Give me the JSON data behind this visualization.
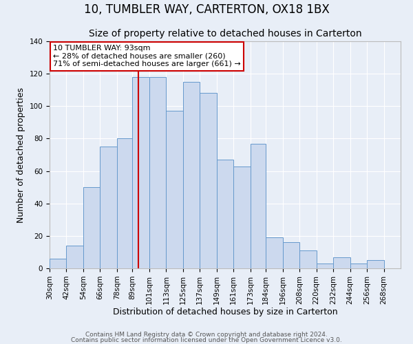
{
  "title": "10, TUMBLER WAY, CARTERTON, OX18 1BX",
  "subtitle": "Size of property relative to detached houses in Carterton",
  "xlabel": "Distribution of detached houses by size in Carterton",
  "ylabel": "Number of detached properties",
  "bar_left_edges": [
    30,
    42,
    54,
    66,
    78,
    89,
    101,
    113,
    125,
    137,
    149,
    161,
    173,
    184,
    196,
    208,
    220,
    232,
    244,
    256
  ],
  "bar_widths": [
    12,
    12,
    12,
    12,
    11,
    12,
    12,
    12,
    12,
    12,
    12,
    12,
    11,
    12,
    12,
    12,
    12,
    12,
    12,
    12
  ],
  "bar_heights": [
    6,
    14,
    50,
    75,
    80,
    118,
    118,
    97,
    115,
    108,
    67,
    63,
    77,
    19,
    16,
    11,
    3,
    7,
    3,
    5
  ],
  "bar_facecolor": "#ccd9ee",
  "bar_edgecolor": "#6699cc",
  "vline_x": 93,
  "vline_color": "#cc0000",
  "ylim": [
    0,
    140
  ],
  "yticks": [
    0,
    20,
    40,
    60,
    80,
    100,
    120,
    140
  ],
  "xtick_labels": [
    "30sqm",
    "42sqm",
    "54sqm",
    "66sqm",
    "78sqm",
    "89sqm",
    "101sqm",
    "113sqm",
    "125sqm",
    "137sqm",
    "149sqm",
    "161sqm",
    "173sqm",
    "184sqm",
    "196sqm",
    "208sqm",
    "220sqm",
    "232sqm",
    "244sqm",
    "256sqm",
    "268sqm"
  ],
  "xtick_positions": [
    30,
    42,
    54,
    66,
    78,
    89,
    101,
    113,
    125,
    137,
    149,
    161,
    173,
    184,
    196,
    208,
    220,
    232,
    244,
    256,
    268
  ],
  "annotation_title": "10 TUMBLER WAY: 93sqm",
  "annotation_line1": "← 28% of detached houses are smaller (260)",
  "annotation_line2": "71% of semi-detached houses are larger (661) →",
  "annotation_box_facecolor": "#ffffff",
  "annotation_box_edgecolor": "#cc0000",
  "footer1": "Contains HM Land Registry data © Crown copyright and database right 2024.",
  "footer2": "Contains public sector information licensed under the Open Government Licence v3.0.",
  "background_color": "#e8eef7",
  "plot_background_color": "#e8eef7",
  "grid_color": "#ffffff",
  "title_fontsize": 12,
  "subtitle_fontsize": 10,
  "axis_label_fontsize": 9,
  "tick_fontsize": 7.5,
  "annotation_fontsize": 8,
  "footer_fontsize": 6.5
}
